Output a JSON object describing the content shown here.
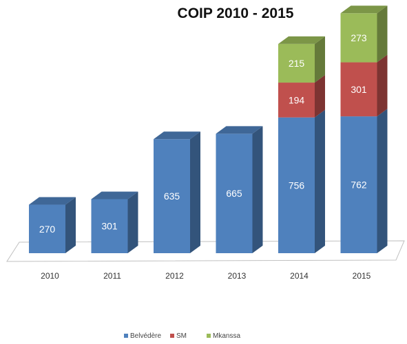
{
  "chart_data": {
    "type": "bar",
    "stacked": true,
    "style": "3d-column",
    "title": "COIP 2010 - 2015",
    "categories": [
      "2010",
      "2011",
      "2012",
      "2013",
      "2014",
      "2015"
    ],
    "series": [
      {
        "name": "Belvédère",
        "color": "#4f81bd",
        "values": [
          270,
          301,
          635,
          665,
          756,
          762
        ]
      },
      {
        "name": "SM",
        "color": "#c0504d",
        "values": [
          null,
          null,
          null,
          null,
          194,
          301
        ]
      },
      {
        "name": "Mkanssa",
        "color": "#9bbb59",
        "values": [
          null,
          null,
          null,
          null,
          215,
          273
        ]
      }
    ],
    "legend_position": "bottom-center",
    "grid": false
  }
}
